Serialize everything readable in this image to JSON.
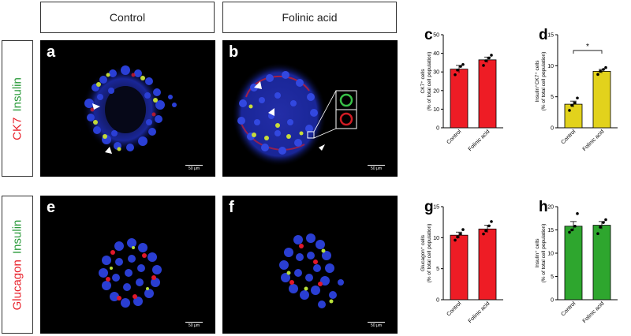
{
  "columns": {
    "control": "Control",
    "folinic": "Folinic acid"
  },
  "rows": {
    "top": {
      "red": "CK7",
      "green": "Insulin"
    },
    "bottom": {
      "red": "Glucagon",
      "green": "Insulin"
    }
  },
  "panels": {
    "a": "a",
    "b": "b",
    "e": "e",
    "f": "f"
  },
  "scale_label": "50 μm",
  "colors": {
    "red_bar": "#ee1c25",
    "yellow_bar": "#e2d21c",
    "green_bar": "#2ea62e",
    "label_red": "#e8202a",
    "label_green": "#2a9a3a"
  },
  "chart_data": [
    {
      "id": "c",
      "letter": "c",
      "type": "bar",
      "ylabel": "CK7⁺ cells",
      "ylabel2": "(% of total cell population)",
      "categories": [
        "Control",
        "Folinic acid"
      ],
      "values": [
        31.5,
        36.5
      ],
      "errors": [
        2.0,
        1.5
      ],
      "points": [
        [
          28.5,
          31,
          33,
          34
        ],
        [
          33.5,
          36,
          37.5,
          39
        ]
      ],
      "ylim": [
        0,
        50
      ],
      "yticks": [
        0,
        10,
        20,
        30,
        40,
        50
      ],
      "color": "#ee1c25",
      "sig": ""
    },
    {
      "id": "d",
      "letter": "d",
      "type": "bar",
      "ylabel": "Insulin⁺CK7⁺ cells",
      "ylabel2": "(% of total cell population)",
      "categories": [
        "Control",
        "Folinic acid"
      ],
      "values": [
        3.8,
        9.1
      ],
      "errors": [
        0.5,
        0.3
      ],
      "points": [
        [
          2.8,
          3.6,
          4.0,
          4.8
        ],
        [
          8.6,
          9.1,
          9.4,
          9.7
        ]
      ],
      "ylim": [
        0,
        15
      ],
      "yticks": [
        0,
        5,
        10,
        15
      ],
      "color": "#e2d21c",
      "sig": "*"
    },
    {
      "id": "g",
      "letter": "g",
      "type": "bar",
      "ylabel": "Glucagon⁺ cells",
      "ylabel2": "(% of total cell population)",
      "categories": [
        "Control",
        "Folinic acid"
      ],
      "values": [
        10.4,
        11.4
      ],
      "errors": [
        0.5,
        0.6
      ],
      "points": [
        [
          9.6,
          10.1,
          10.6,
          11.3
        ],
        [
          10.6,
          11.1,
          11.9,
          12.6
        ]
      ],
      "ylim": [
        0,
        15
      ],
      "yticks": [
        0,
        5,
        10,
        15
      ],
      "color": "#ee1c25",
      "sig": ""
    },
    {
      "id": "h",
      "letter": "h",
      "type": "bar",
      "ylabel": "Insulin⁺ cells",
      "ylabel2": "(% of total cell population)",
      "categories": [
        "Control",
        "Folinic acid"
      ],
      "values": [
        15.8,
        16.0
      ],
      "errors": [
        1.0,
        0.8
      ],
      "points": [
        [
          14.5,
          15.0,
          15.8,
          18.5
        ],
        [
          14.2,
          15.6,
          16.6,
          17.2
        ]
      ],
      "ylim": [
        0,
        20
      ],
      "yticks": [
        0,
        5,
        10,
        15,
        20
      ],
      "color": "#2ea62e",
      "sig": ""
    }
  ]
}
